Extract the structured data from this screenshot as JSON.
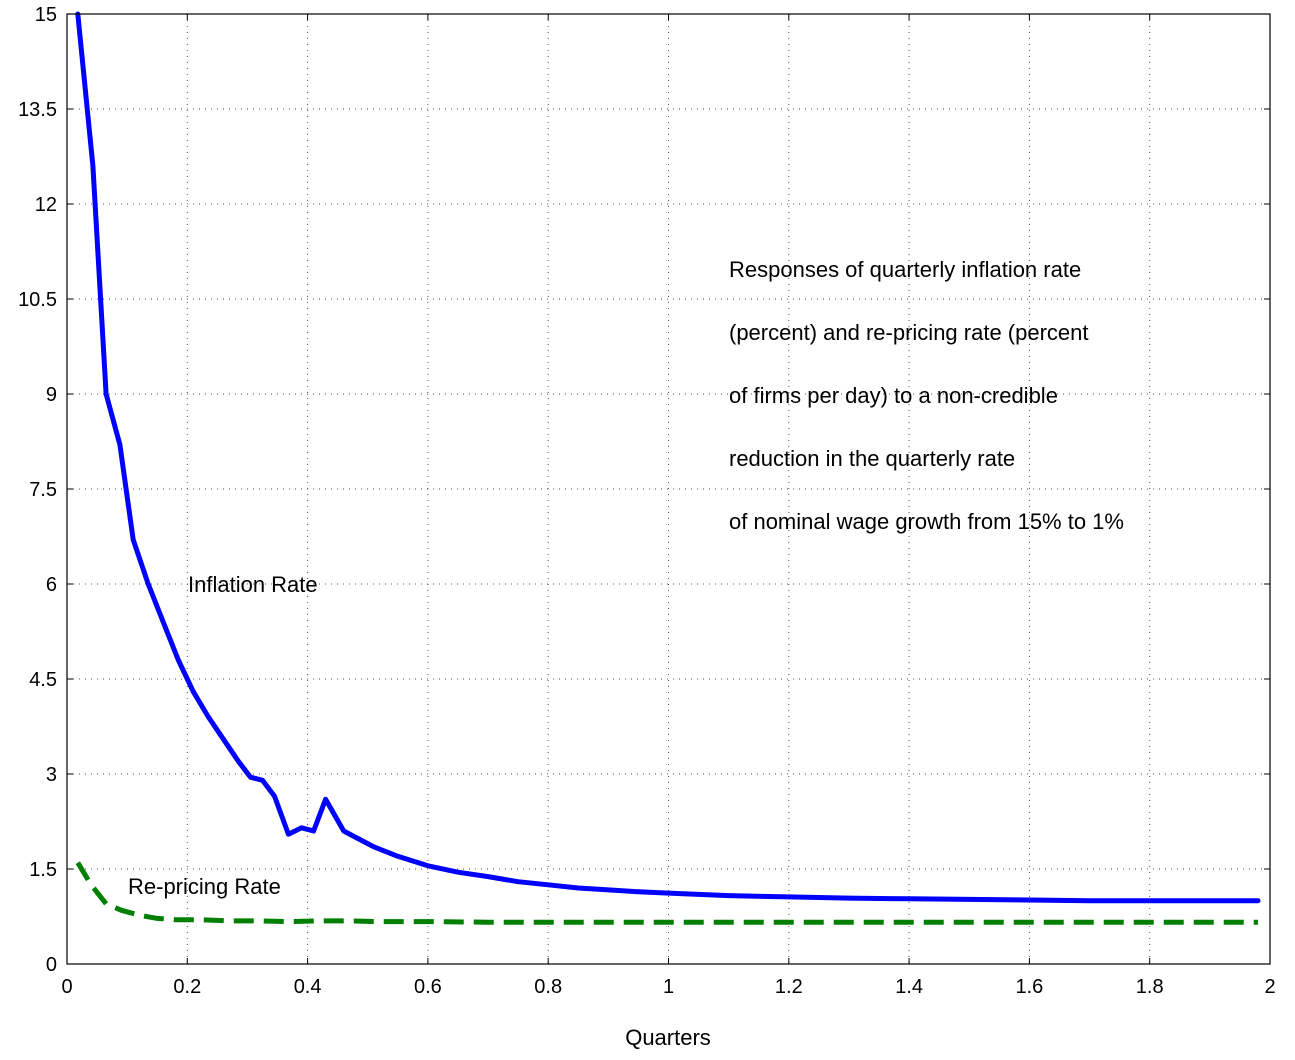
{
  "chart_data": {
    "type": "line",
    "title": "",
    "xlabel": "Quarters",
    "ylabel": "",
    "xlim": [
      0,
      2
    ],
    "ylim": [
      0,
      15
    ],
    "xticks": [
      0,
      0.2,
      0.4,
      0.6,
      0.8,
      1,
      1.2,
      1.4,
      1.6,
      1.8,
      2
    ],
    "xtick_labels": [
      "0",
      "0.2",
      "0.4",
      "0.6",
      "0.8",
      "1",
      "1.2",
      "1.4",
      "1.6",
      "1.8",
      "2"
    ],
    "yticks": [
      0,
      1.5,
      3,
      4.5,
      6,
      7.5,
      9,
      10.5,
      12,
      13.5,
      15
    ],
    "ytick_labels": [
      "0",
      "1.5",
      "3",
      "4.5",
      "6",
      "7.5",
      "9",
      "10.5",
      "12",
      "13.5",
      "15"
    ],
    "grid": true,
    "annotation_lines": [
      "Responses of quarterly inflation rate",
      "(percent) and re-pricing rate (percent",
      "of firms per day) to a non-credible",
      "reduction in the quarterly rate",
      "of nominal wage growth from 15% to 1%"
    ],
    "series": [
      {
        "name": "Inflation Rate",
        "color": "#0000ff",
        "style": "solid",
        "x": [
          0.018,
          0.043,
          0.065,
          0.088,
          0.11,
          0.135,
          0.16,
          0.185,
          0.21,
          0.235,
          0.26,
          0.285,
          0.305,
          0.325,
          0.345,
          0.368,
          0.39,
          0.41,
          0.43,
          0.46,
          0.49,
          0.51,
          0.55,
          0.6,
          0.65,
          0.7,
          0.75,
          0.8,
          0.85,
          0.9,
          0.95,
          1.0,
          1.1,
          1.2,
          1.3,
          1.4,
          1.5,
          1.6,
          1.7,
          1.8,
          1.9,
          1.98
        ],
        "y": [
          15.0,
          12.6,
          9.0,
          8.2,
          6.7,
          6.0,
          5.4,
          4.8,
          4.3,
          3.9,
          3.55,
          3.2,
          2.95,
          2.9,
          2.65,
          2.05,
          2.15,
          2.1,
          2.6,
          2.1,
          1.95,
          1.85,
          1.7,
          1.55,
          1.45,
          1.38,
          1.3,
          1.25,
          1.2,
          1.17,
          1.14,
          1.12,
          1.08,
          1.06,
          1.04,
          1.03,
          1.02,
          1.01,
          1.0,
          1.0,
          1.0,
          1.0
        ]
      },
      {
        "name": "Re-pricing Rate",
        "color": "#007f00",
        "style": "dashed",
        "x": [
          0.018,
          0.04,
          0.065,
          0.09,
          0.12,
          0.15,
          0.18,
          0.22,
          0.27,
          0.32,
          0.37,
          0.42,
          0.47,
          0.52,
          0.6,
          0.7,
          0.8,
          0.9,
          1.0,
          1.2,
          1.4,
          1.6,
          1.8,
          1.98
        ],
        "y": [
          1.6,
          1.25,
          0.95,
          0.85,
          0.77,
          0.72,
          0.7,
          0.7,
          0.68,
          0.68,
          0.67,
          0.68,
          0.68,
          0.67,
          0.67,
          0.66,
          0.66,
          0.66,
          0.66,
          0.66,
          0.66,
          0.66,
          0.66,
          0.66
        ]
      }
    ]
  }
}
